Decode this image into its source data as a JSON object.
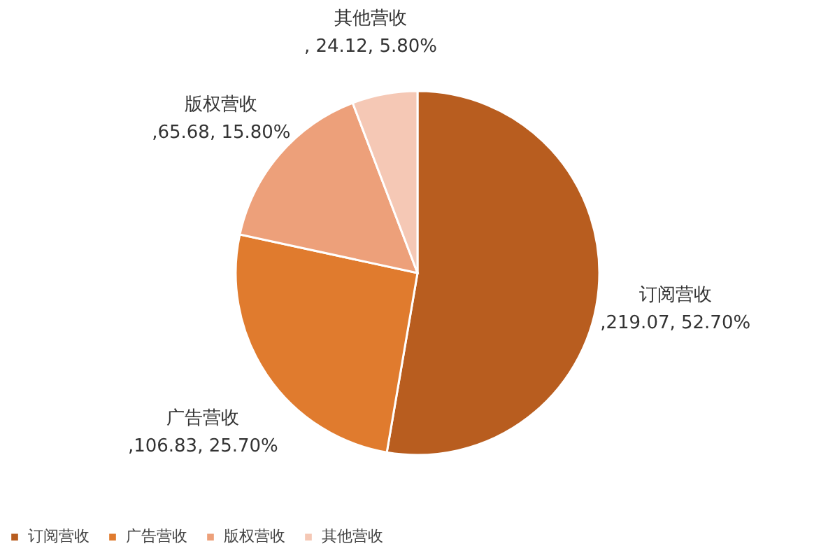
{
  "chart_data": {
    "type": "pie",
    "categories": [
      "订阅营收",
      "广告营收",
      "版权营收",
      "其他营收"
    ],
    "values": [
      219.07,
      106.83,
      65.68,
      24.12
    ],
    "value_labels": [
      ",219.07, 52.70%",
      ",106.83, 25.70%",
      ",65.68, 15.80%",
      ", 24.12, 5.80%"
    ],
    "colors": [
      "#b85d1f",
      "#e07b2e",
      "#eda07a",
      "#f5c8b5"
    ],
    "legend": "bottom"
  }
}
